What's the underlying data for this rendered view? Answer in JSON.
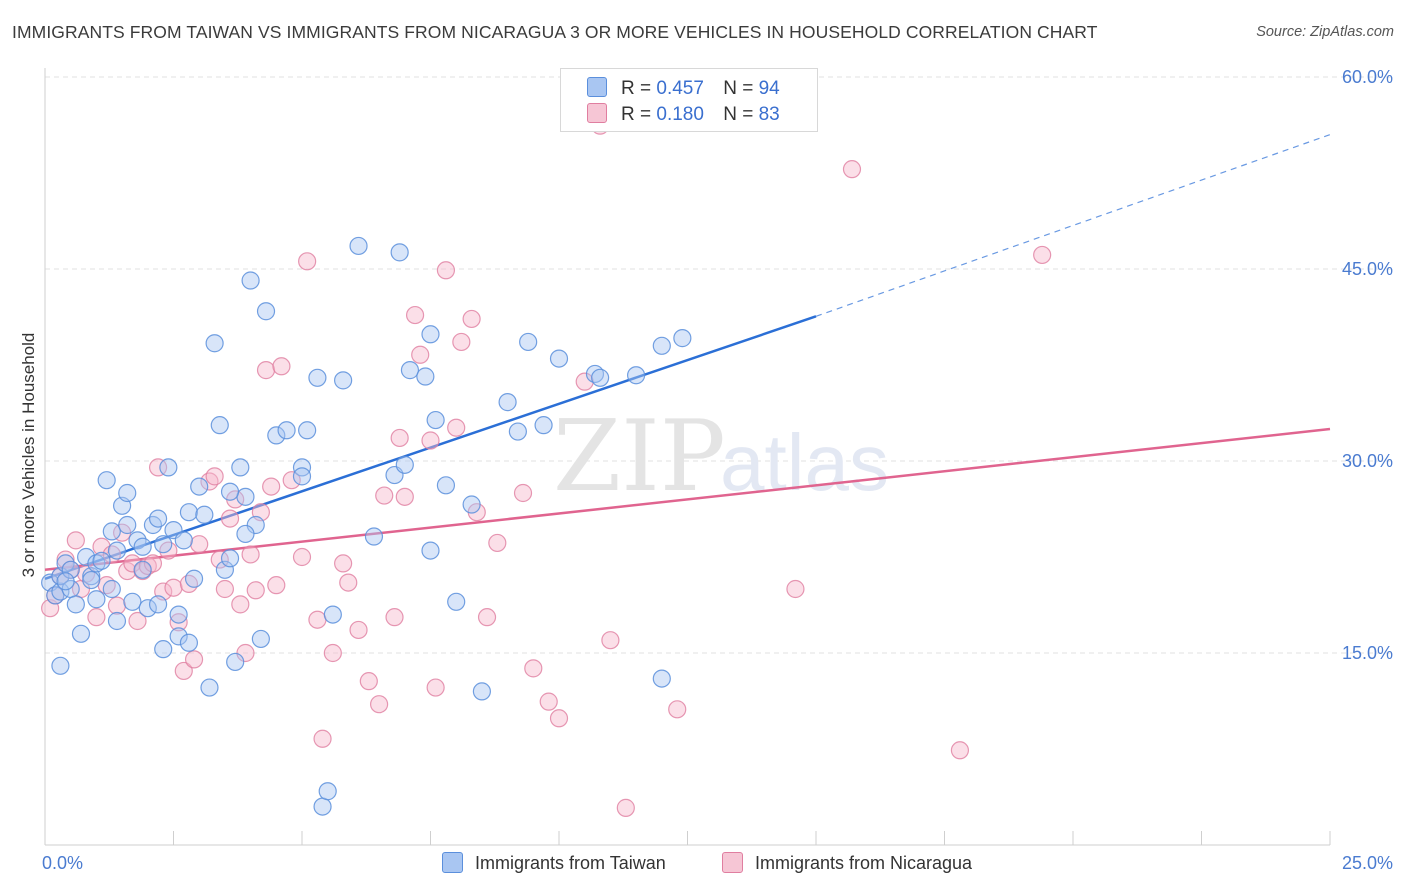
{
  "title": "IMMIGRANTS FROM TAIWAN VS IMMIGRANTS FROM NICARAGUA 3 OR MORE VEHICLES IN HOUSEHOLD CORRELATION CHART",
  "source": "Source: ZipAtlas.com",
  "watermark": {
    "zip": "ZIP",
    "atlas": "atlas"
  },
  "colors": {
    "taiwan_fill": "#a9c6f2",
    "taiwan_stroke": "#5b8fdc",
    "taiwan_line": "#2b6fd6",
    "nicaragua_fill": "#f6b8cb",
    "nicaragua_stroke": "#e07ea0",
    "nicaragua_line": "#e0648f",
    "tick_label": "#4a7bd0"
  },
  "legend": {
    "rows": [
      {
        "r_label": "R =",
        "r_value": "0.457",
        "n_label": "N =",
        "n_value": "94"
      },
      {
        "r_label": "R =",
        "r_value": "0.180",
        "n_label": "N =",
        "n_value": "83"
      }
    ]
  },
  "bottom_legend": {
    "taiwan": "Immigrants from Taiwan",
    "nicaragua": "Immigrants from Nicaragua"
  },
  "chart_data": {
    "type": "scatter",
    "title": "IMMIGRANTS FROM TAIWAN VS IMMIGRANTS FROM NICARAGUA 3 OR MORE VEHICLES IN HOUSEHOLD CORRELATION CHART",
    "xlabel": "",
    "ylabel": "3 or more Vehicles in Household",
    "xlim": [
      0,
      25
    ],
    "ylim": [
      0,
      60
    ],
    "x_tick_labels": [
      "0.0%",
      "25.0%"
    ],
    "y_ticks": [
      15,
      30,
      45,
      60
    ],
    "y_tick_labels": [
      "15.0%",
      "30.0%",
      "45.0%",
      "60.0%"
    ],
    "grid": true,
    "legend_position": "top-center",
    "series": [
      {
        "name": "Immigrants from Taiwan",
        "R": 0.457,
        "N": 94,
        "trend": {
          "x": [
            0,
            15
          ],
          "y": [
            20.8,
            41.3
          ],
          "extended_to": [
            25,
            55.5
          ]
        },
        "points": [
          [
            0.1,
            20.5
          ],
          [
            0.2,
            19.5
          ],
          [
            0.3,
            19.8
          ],
          [
            0.3,
            21.0
          ],
          [
            0.4,
            22.0
          ],
          [
            0.5,
            21.5
          ],
          [
            0.5,
            20.0
          ],
          [
            0.6,
            18.8
          ],
          [
            0.7,
            16.5
          ],
          [
            0.8,
            22.5
          ],
          [
            0.9,
            21.0
          ],
          [
            1.0,
            22.0
          ],
          [
            1.1,
            22.2
          ],
          [
            1.2,
            28.5
          ],
          [
            1.3,
            24.5
          ],
          [
            1.4,
            17.5
          ],
          [
            1.4,
            23.0
          ],
          [
            1.5,
            26.5
          ],
          [
            1.6,
            25.0
          ],
          [
            1.6,
            27.5
          ],
          [
            1.7,
            19.0
          ],
          [
            1.8,
            23.8
          ],
          [
            1.9,
            21.5
          ],
          [
            1.9,
            23.3
          ],
          [
            2.0,
            18.5
          ],
          [
            2.1,
            25.0
          ],
          [
            2.2,
            25.5
          ],
          [
            2.2,
            18.8
          ],
          [
            2.3,
            15.3
          ],
          [
            2.4,
            29.5
          ],
          [
            2.5,
            24.6
          ],
          [
            2.6,
            16.3
          ],
          [
            2.6,
            18.0
          ],
          [
            2.7,
            23.8
          ],
          [
            2.8,
            26.0
          ],
          [
            2.8,
            15.8
          ],
          [
            2.9,
            20.8
          ],
          [
            3.0,
            28.0
          ],
          [
            3.1,
            25.8
          ],
          [
            3.2,
            12.3
          ],
          [
            3.3,
            39.2
          ],
          [
            3.4,
            32.8
          ],
          [
            3.5,
            21.5
          ],
          [
            3.6,
            22.4
          ],
          [
            3.7,
            14.3
          ],
          [
            3.8,
            29.5
          ],
          [
            3.9,
            27.2
          ],
          [
            4.0,
            44.1
          ],
          [
            4.1,
            25.0
          ],
          [
            4.2,
            16.1
          ],
          [
            4.3,
            41.7
          ],
          [
            4.5,
            32.0
          ],
          [
            4.7,
            32.4
          ],
          [
            5.0,
            29.5
          ],
          [
            5.0,
            28.8
          ],
          [
            5.1,
            32.4
          ],
          [
            5.3,
            36.5
          ],
          [
            5.4,
            3.0
          ],
          [
            5.5,
            4.2
          ],
          [
            5.6,
            18.0
          ],
          [
            5.8,
            36.3
          ],
          [
            6.1,
            46.8
          ],
          [
            6.4,
            24.1
          ],
          [
            6.8,
            28.9
          ],
          [
            6.9,
            46.3
          ],
          [
            7.0,
            29.7
          ],
          [
            7.1,
            37.1
          ],
          [
            7.4,
            36.6
          ],
          [
            7.5,
            39.9
          ],
          [
            7.6,
            33.2
          ],
          [
            7.5,
            23.0
          ],
          [
            7.8,
            28.1
          ],
          [
            8.0,
            19.0
          ],
          [
            8.3,
            26.6
          ],
          [
            8.5,
            12.0
          ],
          [
            9.0,
            34.6
          ],
          [
            9.2,
            32.3
          ],
          [
            9.4,
            39.3
          ],
          [
            9.7,
            32.8
          ],
          [
            10.0,
            38.0
          ],
          [
            10.7,
            36.8
          ],
          [
            10.8,
            36.5
          ],
          [
            11.5,
            36.7
          ],
          [
            0.3,
            14.0
          ],
          [
            0.4,
            20.6
          ],
          [
            0.9,
            20.7
          ],
          [
            1.0,
            19.2
          ],
          [
            2.3,
            23.5
          ],
          [
            1.3,
            20.0
          ],
          [
            3.9,
            24.3
          ],
          [
            12.0,
            13.0
          ],
          [
            12.0,
            39.0
          ],
          [
            12.4,
            39.6
          ],
          [
            3.6,
            27.6
          ]
        ]
      },
      {
        "name": "Immigrants from Nicaragua",
        "R": 0.18,
        "N": 83,
        "trend": {
          "x": [
            0,
            25
          ],
          "y": [
            21.5,
            32.5
          ]
        },
        "points": [
          [
            0.1,
            18.5
          ],
          [
            0.2,
            19.5
          ],
          [
            0.3,
            21.0
          ],
          [
            0.4,
            22.3
          ],
          [
            0.5,
            21.5
          ],
          [
            0.6,
            23.8
          ],
          [
            0.7,
            20.0
          ],
          [
            0.8,
            21.2
          ],
          [
            1.0,
            17.8
          ],
          [
            1.1,
            23.3
          ],
          [
            1.2,
            20.3
          ],
          [
            1.3,
            22.7
          ],
          [
            1.4,
            18.7
          ],
          [
            1.5,
            24.4
          ],
          [
            1.6,
            21.4
          ],
          [
            1.7,
            22.0
          ],
          [
            1.8,
            17.5
          ],
          [
            1.9,
            21.4
          ],
          [
            2.0,
            21.8
          ],
          [
            2.1,
            22.0
          ],
          [
            2.2,
            29.5
          ],
          [
            2.3,
            19.8
          ],
          [
            2.4,
            23.0
          ],
          [
            2.5,
            20.1
          ],
          [
            2.6,
            17.4
          ],
          [
            2.7,
            13.6
          ],
          [
            2.8,
            20.4
          ],
          [
            2.9,
            14.5
          ],
          [
            3.0,
            23.5
          ],
          [
            3.2,
            28.4
          ],
          [
            3.3,
            28.8
          ],
          [
            3.4,
            22.3
          ],
          [
            3.5,
            20.0
          ],
          [
            3.6,
            25.5
          ],
          [
            3.7,
            27.0
          ],
          [
            3.8,
            18.8
          ],
          [
            3.9,
            15.0
          ],
          [
            4.0,
            22.7
          ],
          [
            4.1,
            19.9
          ],
          [
            4.2,
            26.0
          ],
          [
            4.3,
            37.1
          ],
          [
            4.4,
            28.0
          ],
          [
            4.5,
            20.3
          ],
          [
            4.6,
            37.4
          ],
          [
            4.8,
            28.5
          ],
          [
            5.0,
            22.5
          ],
          [
            5.1,
            45.6
          ],
          [
            5.3,
            17.6
          ],
          [
            5.4,
            8.3
          ],
          [
            5.6,
            15.0
          ],
          [
            5.8,
            22.0
          ],
          [
            5.9,
            20.5
          ],
          [
            6.1,
            16.8
          ],
          [
            6.3,
            12.8
          ],
          [
            6.5,
            11.0
          ],
          [
            6.6,
            27.3
          ],
          [
            6.8,
            17.8
          ],
          [
            6.9,
            31.8
          ],
          [
            7.0,
            27.2
          ],
          [
            7.2,
            41.4
          ],
          [
            7.3,
            38.3
          ],
          [
            7.5,
            31.6
          ],
          [
            7.6,
            12.3
          ],
          [
            7.8,
            44.9
          ],
          [
            8.0,
            32.6
          ],
          [
            8.1,
            39.3
          ],
          [
            8.3,
            41.1
          ],
          [
            8.4,
            26.0
          ],
          [
            8.6,
            17.8
          ],
          [
            8.8,
            23.6
          ],
          [
            9.3,
            27.5
          ],
          [
            9.5,
            13.8
          ],
          [
            9.8,
            11.2
          ],
          [
            10.0,
            9.9
          ],
          [
            10.5,
            36.2
          ],
          [
            10.8,
            56.2
          ],
          [
            11.0,
            16.0
          ],
          [
            11.3,
            2.9
          ],
          [
            12.3,
            10.6
          ],
          [
            14.6,
            20.0
          ],
          [
            15.7,
            52.8
          ],
          [
            17.8,
            7.4
          ],
          [
            19.4,
            46.1
          ]
        ]
      }
    ]
  }
}
